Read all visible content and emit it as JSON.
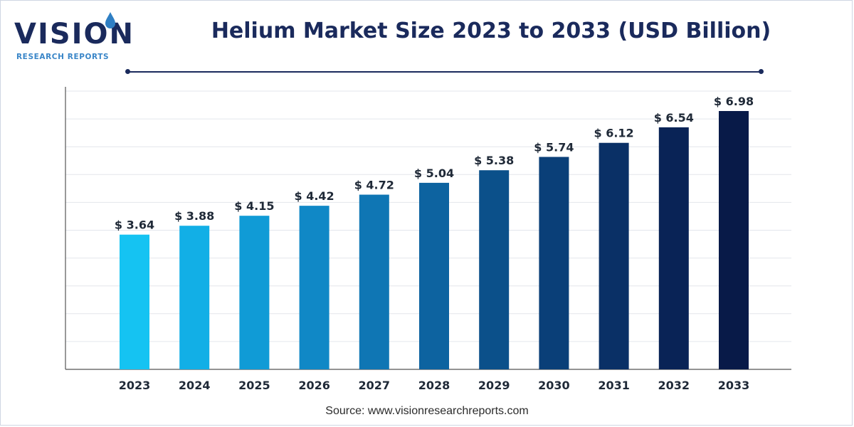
{
  "logo": {
    "word": "VISION",
    "sub": "RESEARCH REPORTS"
  },
  "source": "Source: www.visionresearchreports.com",
  "colors": {
    "title": "#1a2a5c",
    "grid": "#e3e6ec",
    "axis": "#555555"
  },
  "chart_data": {
    "type": "bar",
    "title": "Helium Market Size 2023 to 2033 (USD Billion)",
    "categories": [
      "2023",
      "2024",
      "2025",
      "2026",
      "2027",
      "2028",
      "2029",
      "2030",
      "2031",
      "2032",
      "2033"
    ],
    "values": [
      3.64,
      3.88,
      4.15,
      4.42,
      4.72,
      5.04,
      5.38,
      5.74,
      6.12,
      6.54,
      6.98
    ],
    "labels": [
      "$ 3.64",
      "$ 3.88",
      "$ 4.15",
      "$ 4.42",
      "$ 4.72",
      "$ 5.04",
      "$ 5.38",
      "$ 5.74",
      "$ 6.12",
      "$ 6.54",
      "$ 6.98"
    ],
    "bar_colors": [
      "#15c3f2",
      "#12afe6",
      "#109bd6",
      "#1088c6",
      "#0f76b4",
      "#0d63a0",
      "#0b508a",
      "#0a3f78",
      "#0a3066",
      "#092356",
      "#081a48"
    ],
    "xlabel": "",
    "ylabel": "",
    "grid": true,
    "legend": "none"
  }
}
